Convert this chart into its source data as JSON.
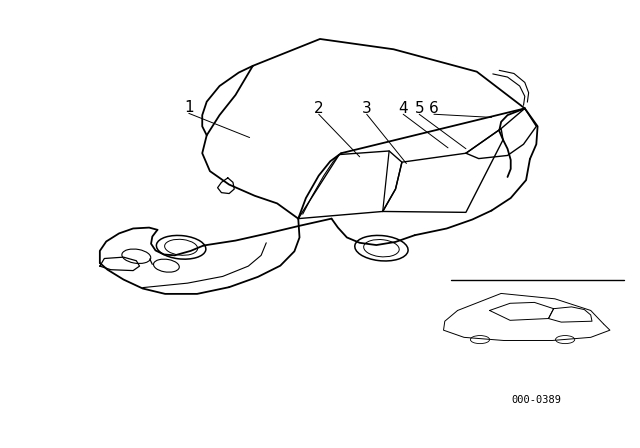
{
  "background_color": "#ffffff",
  "line_color": "#000000",
  "labels": [
    "1",
    "2",
    "3",
    "4",
    "5",
    "6"
  ],
  "ref_number": "000-0389",
  "fig_width": 6.4,
  "fig_height": 4.48,
  "dpi": 100
}
